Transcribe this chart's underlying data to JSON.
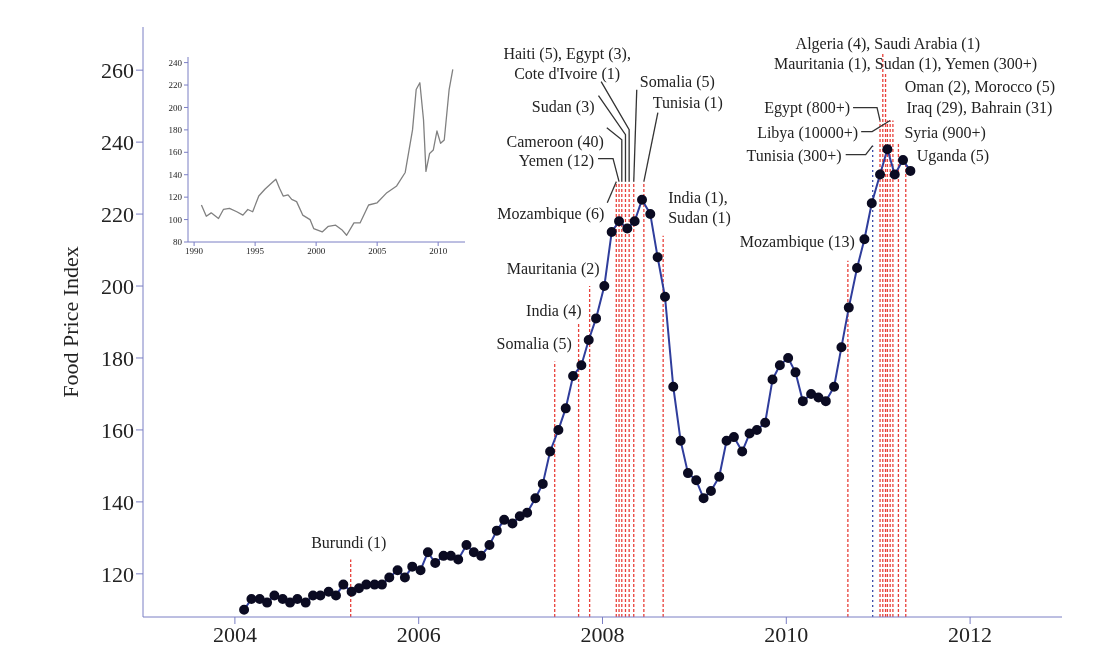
{
  "chart_data": [
    {
      "type": "line",
      "ylabel": "Food Price Index",
      "color": "#2f3d9c",
      "marker": "circle",
      "xlim": [
        2003,
        2013
      ],
      "xticks": [
        2004,
        2006,
        2008,
        2010,
        2012
      ],
      "ylim": [
        108,
        272
      ],
      "yticks": [
        120,
        140,
        160,
        180,
        200,
        220,
        240,
        260
      ],
      "x": [
        2004.1,
        2004.18,
        2004.27,
        2004.35,
        2004.43,
        2004.52,
        2004.6,
        2004.68,
        2004.77,
        2004.85,
        2004.93,
        2005.02,
        2005.1,
        2005.18,
        2005.27,
        2005.35,
        2005.43,
        2005.52,
        2005.6,
        2005.68,
        2005.77,
        2005.85,
        2005.93,
        2006.02,
        2006.1,
        2006.18,
        2006.27,
        2006.35,
        2006.43,
        2006.52,
        2006.6,
        2006.68,
        2006.77,
        2006.85,
        2006.93,
        2007.02,
        2007.1,
        2007.18,
        2007.27,
        2007.35,
        2007.43,
        2007.52,
        2007.6,
        2007.68,
        2007.77,
        2007.85,
        2007.93,
        2008.02,
        2008.1,
        2008.18,
        2008.27,
        2008.35,
        2008.43,
        2008.52,
        2008.6,
        2008.68,
        2008.77,
        2008.85,
        2008.93,
        2009.02,
        2009.1,
        2009.18,
        2009.27,
        2009.35,
        2009.43,
        2009.52,
        2009.6,
        2009.68,
        2009.77,
        2009.85,
        2009.93,
        2010.02,
        2010.1,
        2010.18,
        2010.27,
        2010.35,
        2010.43,
        2010.52,
        2010.6,
        2010.68,
        2010.77,
        2010.85,
        2010.93,
        2011.02,
        2011.1,
        2011.18,
        2011.27,
        2011.35
      ],
      "values": [
        110,
        113,
        113,
        112,
        114,
        113,
        112,
        113,
        112,
        114,
        114,
        115,
        114,
        117,
        115,
        116,
        117,
        117,
        117,
        119,
        121,
        119,
        122,
        121,
        126,
        123,
        125,
        125,
        124,
        128,
        126,
        125,
        128,
        132,
        135,
        134,
        136,
        137,
        141,
        145,
        154,
        160,
        166,
        175,
        178,
        185,
        191,
        200,
        215,
        218,
        216,
        218,
        224,
        220,
        208,
        197,
        172,
        157,
        148,
        146,
        141,
        143,
        147,
        157,
        158,
        154,
        159,
        160,
        162,
        174,
        178,
        180,
        176,
        168,
        170,
        169,
        168,
        172,
        183,
        194,
        205,
        213,
        223,
        231,
        238,
        231,
        235,
        232
      ],
      "ref_lines": [
        {
          "axis": "x",
          "value": 2005.26,
          "color": "#e8403a",
          "line_style": "dashed"
        },
        {
          "axis": "x",
          "value": 2007.48,
          "color": "#e8403a",
          "line_style": "dashed"
        },
        {
          "axis": "x",
          "value": 2007.74,
          "color": "#e8403a",
          "line_style": "dashed"
        },
        {
          "axis": "x",
          "value": 2007.86,
          "color": "#e8403a",
          "line_style": "dashed"
        },
        {
          "axis": "x",
          "value": 2008.15,
          "color": "#e8403a",
          "line_style": "dashed"
        },
        {
          "axis": "x",
          "value": 2008.18,
          "color": "#e8403a",
          "line_style": "dashed"
        },
        {
          "axis": "x",
          "value": 2008.21,
          "color": "#e8403a",
          "line_style": "dashed"
        },
        {
          "axis": "x",
          "value": 2008.25,
          "color": "#e8403a",
          "line_style": "dashed"
        },
        {
          "axis": "x",
          "value": 2008.29,
          "color": "#e8403a",
          "line_style": "dashed"
        },
        {
          "axis": "x",
          "value": 2008.34,
          "color": "#e8403a",
          "line_style": "dashed"
        },
        {
          "axis": "x",
          "value": 2008.45,
          "color": "#e8403a",
          "line_style": "dashed"
        },
        {
          "axis": "x",
          "value": 2008.66,
          "color": "#e8403a",
          "line_style": "dashed"
        },
        {
          "axis": "x",
          "value": 2010.67,
          "color": "#e8403a",
          "line_style": "dashed"
        },
        {
          "axis": "x",
          "value": 2010.94,
          "color": "#3a4aa8",
          "line_style": "dotted"
        },
        {
          "axis": "x",
          "value": 2011.02,
          "color": "#e8403a",
          "line_style": "dashed"
        },
        {
          "axis": "x",
          "value": 2011.13,
          "color": "#e8403a",
          "line_style": "dashed"
        },
        {
          "axis": "x",
          "value": 2011.05,
          "color": "#e8403a",
          "line_style": "dashed"
        },
        {
          "axis": "x",
          "value": 2011.08,
          "color": "#e8403a",
          "line_style": "dashed"
        },
        {
          "axis": "x",
          "value": 2011.16,
          "color": "#e8403a",
          "line_style": "dashed"
        },
        {
          "axis": "x",
          "value": 2011.1,
          "color": "#e8403a",
          "line_style": "dashed"
        },
        {
          "axis": "x",
          "value": 2011.22,
          "color": "#e8403a",
          "line_style": "dashed"
        },
        {
          "axis": "x",
          "value": 2011.3,
          "color": "#e8403a",
          "line_style": "dashed"
        }
      ],
      "annotations": [
        {
          "text": "Burundi (1)",
          "x": 2005.26,
          "y": 124
        },
        {
          "text": "Somalia (5)",
          "x": 2007.48,
          "y": 179
        },
        {
          "text": "India (4)",
          "x": 2007.74,
          "y": 190
        },
        {
          "text": "Mauritania (2)",
          "x": 2007.86,
          "y": 200
        },
        {
          "text": "Mozambique (6)",
          "x": 2008.15,
          "y": 229
        },
        {
          "text": "Yemen (12)",
          "x": 2008.18,
          "y": 229
        },
        {
          "text": "Cameroon (40)",
          "x": 2008.21,
          "y": 229
        },
        {
          "text": "Sudan (3)",
          "x": 2008.25,
          "y": 229
        },
        {
          "text": "Haiti (5), Egypt (3),\nCote d'Ivoire (1)",
          "x": 2008.29,
          "y": 229
        },
        {
          "text": "Somalia (5)",
          "x": 2008.34,
          "y": 229
        },
        {
          "text": "Tunisia (1)",
          "x": 2008.45,
          "y": 229
        },
        {
          "text": "India (1),\nSudan (1)",
          "x": 2008.66,
          "y": 214
        },
        {
          "text": "Mozambique (13)",
          "x": 2010.67,
          "y": 207
        },
        {
          "text": "Tunisia (300+)",
          "x": 2010.94,
          "y": 239
        },
        {
          "text": "Egypt (800+)",
          "x": 2011.02,
          "y": 246
        },
        {
          "text": "Libya (10000+)",
          "x": 2011.13,
          "y": 246
        },
        {
          "text": "Algeria (4), Saudi Arabia (1)",
          "x": 2011.05,
          "y": 265
        },
        {
          "text": "Mauritania (1), Sudan (1), Yemen (300+)",
          "x": 2011.08,
          "y": 259
        },
        {
          "text": "Oman (2), Morocco (5)",
          "x": 2011.16,
          "y": 246
        },
        {
          "text": "Iraq (29), Bahrain (31)",
          "x": 2011.1,
          "y": 246
        },
        {
          "text": "Syria (900+)",
          "x": 2011.22,
          "y": 240
        },
        {
          "text": "Uganda (5)",
          "x": 2011.3,
          "y": 234
        }
      ]
    },
    {
      "type": "line",
      "color": "#808080",
      "marker": "none",
      "xlim": [
        1989.5,
        2012.2
      ],
      "xticks": [
        1990,
        1995,
        2000,
        2005,
        2010
      ],
      "ylim": [
        80,
        245
      ],
      "yticks": [
        80,
        100,
        120,
        140,
        160,
        180,
        200,
        220,
        240
      ],
      "x": [
        1990.6,
        1991.0,
        1991.4,
        1992.0,
        1992.4,
        1992.9,
        1993.5,
        1994.0,
        1994.4,
        1994.8,
        1995.3,
        1995.8,
        1996.4,
        1996.7,
        1997.0,
        1997.3,
        1997.7,
        1998.0,
        1998.4,
        1998.9,
        1999.5,
        1999.8,
        2000.5,
        2001.0,
        2001.6,
        2002.1,
        2002.5,
        2003.1,
        2003.6,
        2004.3,
        2005.0,
        2005.8,
        2006.6,
        2007.3,
        2007.9,
        2008.2,
        2008.5,
        2008.8,
        2009.0,
        2009.3,
        2009.6,
        2009.9,
        2010.2,
        2010.5,
        2010.9,
        2011.2
      ],
      "values": [
        113,
        103,
        106,
        101,
        109,
        110,
        107,
        104,
        109,
        107,
        121,
        127,
        133,
        136,
        128,
        121,
        122,
        118,
        116,
        104,
        100,
        92,
        89,
        94,
        95,
        91,
        86,
        97,
        97,
        113,
        115,
        124,
        130,
        142,
        180,
        216,
        222,
        189,
        143,
        159,
        162,
        179,
        168,
        171,
        216,
        234
      ]
    }
  ]
}
